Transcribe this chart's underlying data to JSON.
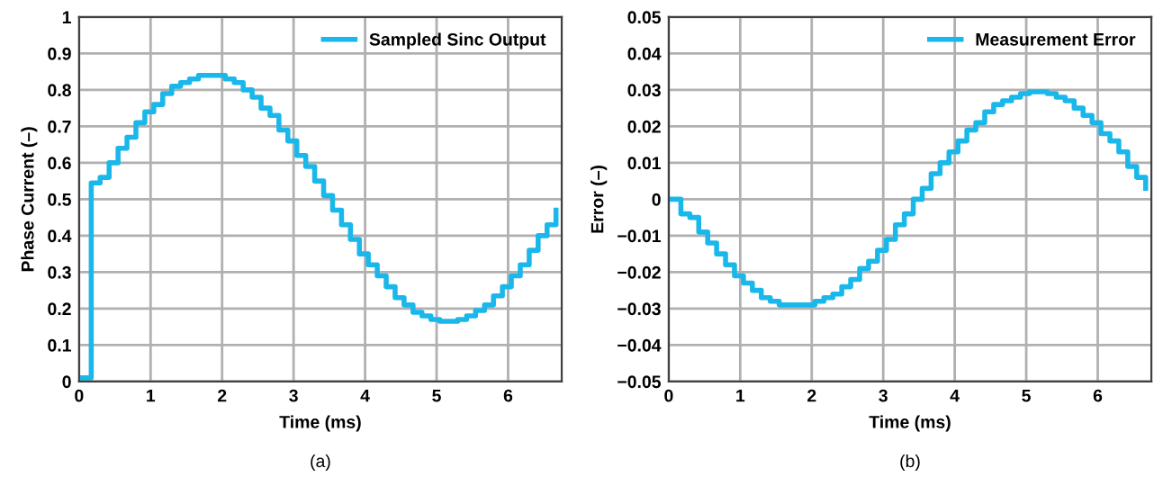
{
  "chart_data": [
    {
      "type": "step",
      "xlabel": "Time (ms)",
      "ylabel": "Phase Current (–)",
      "annotations": [
        "(a)"
      ],
      "x": [
        0,
        0.17,
        0.295,
        0.42,
        0.545,
        0.67,
        0.795,
        0.92,
        1.045,
        1.17,
        1.295,
        1.42,
        1.545,
        1.67,
        1.795,
        1.92,
        2.045,
        2.17,
        2.295,
        2.42,
        2.545,
        2.67,
        2.795,
        2.92,
        3.045,
        3.17,
        3.295,
        3.42,
        3.545,
        3.67,
        3.795,
        3.92,
        4.045,
        4.17,
        4.295,
        4.42,
        4.545,
        4.67,
        4.795,
        4.92,
        5.045,
        5.17,
        5.295,
        5.42,
        5.545,
        5.67,
        5.795,
        5.92,
        6.045,
        6.17,
        6.295,
        6.42,
        6.545,
        6.67
      ],
      "series": [
        {
          "name": "Sampled Sinc Output",
          "color": "#1ab8ea",
          "values": [
            0.01,
            0.545,
            0.56,
            0.6,
            0.64,
            0.67,
            0.71,
            0.74,
            0.76,
            0.79,
            0.81,
            0.82,
            0.83,
            0.84,
            0.84,
            0.84,
            0.83,
            0.82,
            0.8,
            0.78,
            0.75,
            0.73,
            0.69,
            0.66,
            0.62,
            0.59,
            0.55,
            0.51,
            0.47,
            0.43,
            0.39,
            0.35,
            0.32,
            0.29,
            0.26,
            0.23,
            0.21,
            0.19,
            0.18,
            0.17,
            0.165,
            0.165,
            0.17,
            0.18,
            0.195,
            0.21,
            0.235,
            0.26,
            0.29,
            0.32,
            0.36,
            0.4,
            0.43,
            0.47
          ]
        }
      ],
      "xlim": [
        0,
        6.75
      ],
      "xticks": [
        0,
        1,
        2,
        3,
        4,
        5,
        6
      ],
      "ylim": [
        0,
        1
      ],
      "yticks": [
        0,
        0.1,
        0.2,
        0.3,
        0.4,
        0.5,
        0.6,
        0.7,
        0.8,
        0.9,
        1
      ],
      "grid": true,
      "legend": "top right",
      "line_style": "solid"
    },
    {
      "type": "step",
      "xlabel": "Time (ms)",
      "ylabel": "Error (–)",
      "annotations": [
        "(b)"
      ],
      "x": [
        0,
        0.17,
        0.295,
        0.42,
        0.545,
        0.67,
        0.795,
        0.92,
        1.045,
        1.17,
        1.295,
        1.42,
        1.545,
        1.67,
        1.795,
        1.92,
        2.045,
        2.17,
        2.295,
        2.42,
        2.545,
        2.67,
        2.795,
        2.92,
        3.045,
        3.17,
        3.295,
        3.42,
        3.545,
        3.67,
        3.795,
        3.92,
        4.045,
        4.17,
        4.295,
        4.42,
        4.545,
        4.67,
        4.795,
        4.92,
        5.045,
        5.17,
        5.295,
        5.42,
        5.545,
        5.67,
        5.795,
        5.92,
        6.045,
        6.17,
        6.295,
        6.42,
        6.545,
        6.67
      ],
      "series": [
        {
          "name": "Measurement Error",
          "color": "#1ab8ea",
          "values": [
            0,
            -0.004,
            -0.005,
            -0.009,
            -0.012,
            -0.015,
            -0.018,
            -0.021,
            -0.023,
            -0.025,
            -0.027,
            -0.028,
            -0.029,
            -0.029,
            -0.029,
            -0.029,
            -0.028,
            -0.027,
            -0.026,
            -0.024,
            -0.022,
            -0.019,
            -0.017,
            -0.014,
            -0.011,
            -0.007,
            -0.004,
            0.0,
            0.003,
            0.007,
            0.01,
            0.013,
            0.016,
            0.019,
            0.021,
            0.024,
            0.026,
            0.027,
            0.028,
            0.029,
            0.0295,
            0.0295,
            0.029,
            0.028,
            0.027,
            0.025,
            0.023,
            0.021,
            0.018,
            0.016,
            0.013,
            0.009,
            0.006,
            0.003
          ]
        }
      ],
      "xlim": [
        0,
        6.75
      ],
      "xticks": [
        0,
        1,
        2,
        3,
        4,
        5,
        6
      ],
      "ylim": [
        -0.05,
        0.05
      ],
      "yticks": [
        -0.05,
        -0.04,
        -0.03,
        -0.02,
        -0.01,
        0,
        0.01,
        0.02,
        0.03,
        0.04,
        0.05
      ],
      "grid": true,
      "legend": "top right",
      "line_style": "solid"
    }
  ]
}
